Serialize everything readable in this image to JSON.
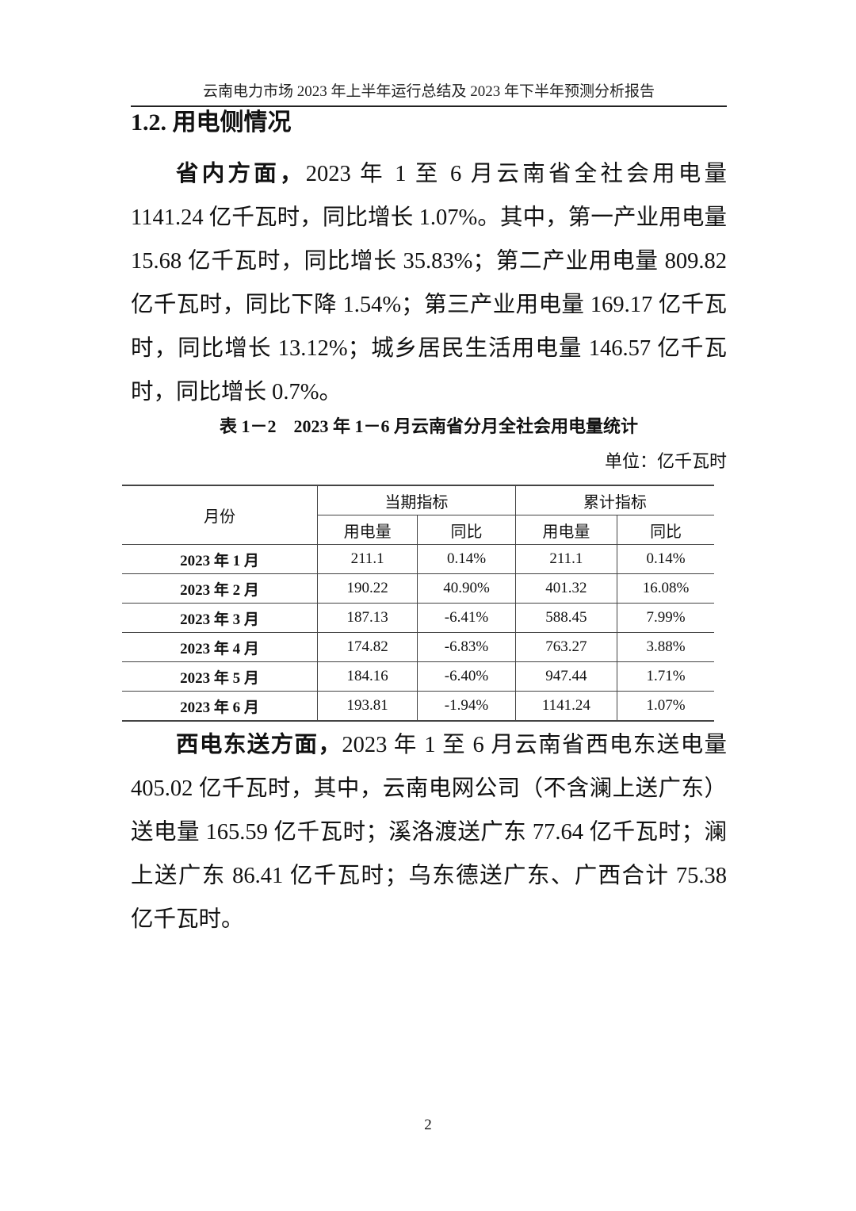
{
  "header": {
    "running_title": "云南电力市场 2023 年上半年运行总结及 2023 年下半年预测分析报告"
  },
  "section": {
    "heading": "1.2. 用电侧情况"
  },
  "paragraph1": {
    "lead": "省内方面，",
    "text": "2023 年 1 至 6 月云南省全社会用电量 1141.24 亿千瓦时，同比增长 1.07%。其中，第一产业用电量 15.68 亿千瓦时，同比增长 35.83%；第二产业用电量 809.82 亿千瓦时，同比下降 1.54%；第三产业用电量 169.17 亿千瓦时，同比增长 13.12%；城乡居民生活用电量 146.57 亿千瓦时，同比增长 0.7%。"
  },
  "table": {
    "caption": "表 1－2　2023 年 1－6 月云南省分月全社会用电量统计",
    "unit": "单位：亿千瓦时",
    "header_month": "月份",
    "group_current": "当期指标",
    "group_cumulative": "累计指标",
    "sub_headers": [
      "用电量",
      "同比",
      "用电量",
      "同比"
    ],
    "rows": [
      [
        "2023 年 1 月",
        "211.1",
        "0.14%",
        "211.1",
        "0.14%"
      ],
      [
        "2023 年 2 月",
        "190.22",
        "40.90%",
        "401.32",
        "16.08%"
      ],
      [
        "2023 年 3 月",
        "187.13",
        "-6.41%",
        "588.45",
        "7.99%"
      ],
      [
        "2023 年 4 月",
        "174.82",
        "-6.83%",
        "763.27",
        "3.88%"
      ],
      [
        "2023 年 5 月",
        "184.16",
        "-6.40%",
        "947.44",
        "1.71%"
      ],
      [
        "2023 年 6 月",
        "193.81",
        "-1.94%",
        "1141.24",
        "1.07%"
      ]
    ]
  },
  "paragraph2": {
    "lead": "西电东送方面，",
    "text": "2023 年 1 至 6 月云南省西电东送电量 405.02 亿千瓦时，其中，云南电网公司（不含澜上送广东）送电量 165.59 亿千瓦时；溪洛渡送广东 77.64 亿千瓦时；澜上送广东 86.41 亿千瓦时；乌东德送广东、广西合计 75.38 亿千瓦时。"
  },
  "footer": {
    "page_number": "2"
  }
}
